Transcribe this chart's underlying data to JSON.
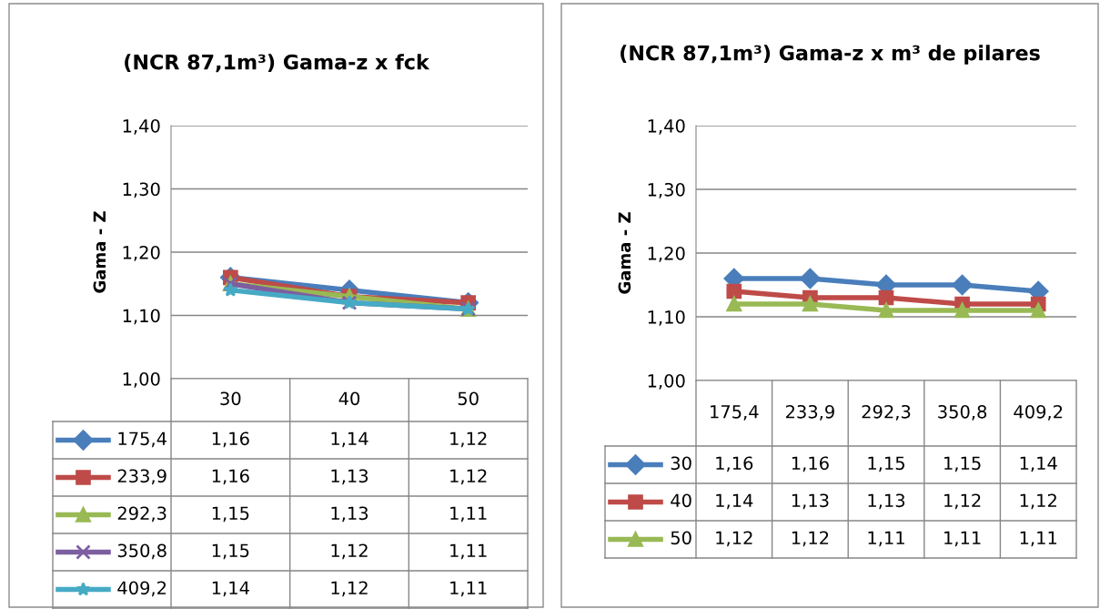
{
  "chart_data": [
    {
      "type": "line",
      "title": "(NCR 87,1m³) Gama-z x fck",
      "ylabel": "Gama - Z",
      "categories": [
        "30",
        "40",
        "50"
      ],
      "ylim": [
        1.0,
        1.4
      ],
      "yticks": [
        {
          "value": 1.0,
          "label": "1,00"
        },
        {
          "value": 1.1,
          "label": "1,10"
        },
        {
          "value": 1.2,
          "label": "1,20"
        },
        {
          "value": 1.3,
          "label": "1,30"
        },
        {
          "value": 1.4,
          "label": "1,40"
        }
      ],
      "grid": "y",
      "legend": "bottom",
      "series": [
        {
          "name": "175,4",
          "color": "#4a7ebb",
          "marker": "diamond",
          "values": [
            1.16,
            1.14,
            1.12
          ],
          "value_labels": [
            "1,16",
            "1,14",
            "1,12"
          ]
        },
        {
          "name": "233,9",
          "color": "#be4b48",
          "marker": "square",
          "values": [
            1.16,
            1.13,
            1.12
          ],
          "value_labels": [
            "1,16",
            "1,13",
            "1,12"
          ]
        },
        {
          "name": "292,3",
          "color": "#98b954",
          "marker": "triangle",
          "values": [
            1.15,
            1.13,
            1.11
          ],
          "value_labels": [
            "1,15",
            "1,13",
            "1,11"
          ]
        },
        {
          "name": "350,8",
          "color": "#7d5fa0",
          "marker": "cross",
          "values": [
            1.15,
            1.12,
            1.11
          ],
          "value_labels": [
            "1,15",
            "1,12",
            "1,11"
          ]
        },
        {
          "name": "409,2",
          "color": "#46aac5",
          "marker": "star",
          "values": [
            1.14,
            1.12,
            1.11
          ],
          "value_labels": [
            "1,14",
            "1,12",
            "1,11"
          ]
        }
      ]
    },
    {
      "type": "line",
      "title": "(NCR 87,1m³) Gama-z x m³ de pilares",
      "ylabel": "Gama - Z",
      "categories": [
        "175,4",
        "233,9",
        "292,3",
        "350,8",
        "409,2"
      ],
      "ylim": [
        1.0,
        1.4
      ],
      "yticks": [
        {
          "value": 1.0,
          "label": "1,00"
        },
        {
          "value": 1.1,
          "label": "1,10"
        },
        {
          "value": 1.2,
          "label": "1,20"
        },
        {
          "value": 1.3,
          "label": "1,30"
        },
        {
          "value": 1.4,
          "label": "1,40"
        }
      ],
      "grid": "y",
      "legend": "bottom",
      "series": [
        {
          "name": "30",
          "color": "#4a7ebb",
          "marker": "diamond",
          "values": [
            1.16,
            1.16,
            1.15,
            1.15,
            1.14
          ],
          "value_labels": [
            "1,16",
            "1,16",
            "1,15",
            "1,15",
            "1,14"
          ]
        },
        {
          "name": "40",
          "color": "#be4b48",
          "marker": "square",
          "values": [
            1.14,
            1.13,
            1.13,
            1.12,
            1.12
          ],
          "value_labels": [
            "1,14",
            "1,13",
            "1,13",
            "1,12",
            "1,12"
          ]
        },
        {
          "name": "50",
          "color": "#98b954",
          "marker": "triangle",
          "values": [
            1.12,
            1.12,
            1.11,
            1.11,
            1.11
          ],
          "value_labels": [
            "1,12",
            "1,12",
            "1,11",
            "1,11",
            "1,11"
          ]
        }
      ]
    }
  ]
}
